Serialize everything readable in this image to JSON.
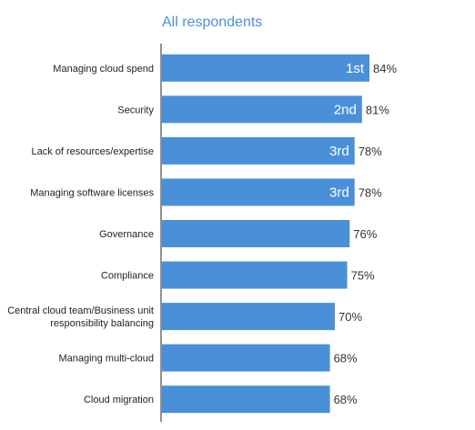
{
  "chart_data": {
    "type": "bar",
    "orientation": "horizontal",
    "title": "All respondents",
    "categories": [
      "Managing cloud spend",
      "Security",
      "Lack of resources/expertise",
      "Managing software licenses",
      "Governance",
      "Compliance",
      "Central cloud team/Business unit responsibility balancing",
      "Managing multi-cloud",
      "Cloud migration"
    ],
    "category_lines": [
      [
        "Managing cloud spend"
      ],
      [
        "Security"
      ],
      [
        "Lack of resources/expertise"
      ],
      [
        "Managing software licenses"
      ],
      [
        "Governance"
      ],
      [
        "Compliance"
      ],
      [
        "Central cloud team/Business unit",
        "responsibility balancing"
      ],
      [
        "Managing multi-cloud"
      ],
      [
        "Cloud migration"
      ]
    ],
    "values": [
      84,
      81,
      78,
      78,
      76,
      75,
      70,
      68,
      68
    ],
    "value_labels": [
      "84%",
      "81%",
      "78%",
      "78%",
      "76%",
      "75%",
      "70%",
      "68%",
      "68%"
    ],
    "ranks": [
      "1st",
      "2nd",
      "3rd",
      "3rd",
      "",
      "",
      "",
      "",
      ""
    ],
    "bar_color": "#4a90d9",
    "axis_color": "#222222",
    "grid": false,
    "xlim": [
      0,
      100
    ]
  }
}
